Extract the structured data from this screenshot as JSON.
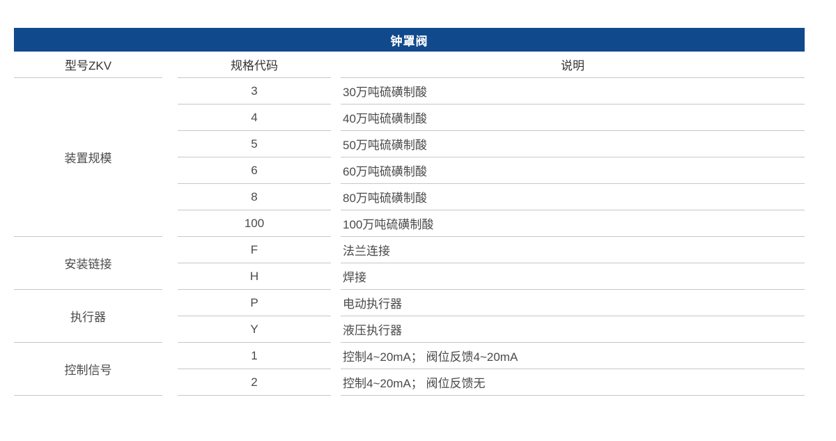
{
  "title": "钟罩阀",
  "columns": [
    "型号ZKV",
    "规格代码",
    "说明"
  ],
  "groups": [
    {
      "label": "装置规模",
      "rows": [
        {
          "code": "3",
          "desc": "30万吨硫磺制酸"
        },
        {
          "code": "4",
          "desc": "40万吨硫磺制酸"
        },
        {
          "code": "5",
          "desc": "50万吨硫磺制酸"
        },
        {
          "code": "6",
          "desc": "60万吨硫磺制酸"
        },
        {
          "code": "8",
          "desc": "80万吨硫磺制酸"
        },
        {
          "code": "100",
          "desc": "100万吨硫磺制酸"
        }
      ]
    },
    {
      "label": "安装链接",
      "rows": [
        {
          "code": "F",
          "desc": "法兰连接"
        },
        {
          "code": "H",
          "desc": "焊接"
        }
      ]
    },
    {
      "label": "执行器",
      "rows": [
        {
          "code": "P",
          "desc": "电动执行器"
        },
        {
          "code": "Y",
          "desc": "液压执行器"
        }
      ]
    },
    {
      "label": "控制信号",
      "rows": [
        {
          "code": "1",
          "desc": "控制4~20mA； 阀位反馈4~20mA"
        },
        {
          "code": "2",
          "desc": "控制4~20mA； 阀位反馈无"
        }
      ]
    }
  ],
  "colors": {
    "header_bg": "#114a8c",
    "header_text": "#ffffff",
    "heading_text": "#333333",
    "body_text": "#4a4a4a",
    "border": "#c7c7c7"
  }
}
